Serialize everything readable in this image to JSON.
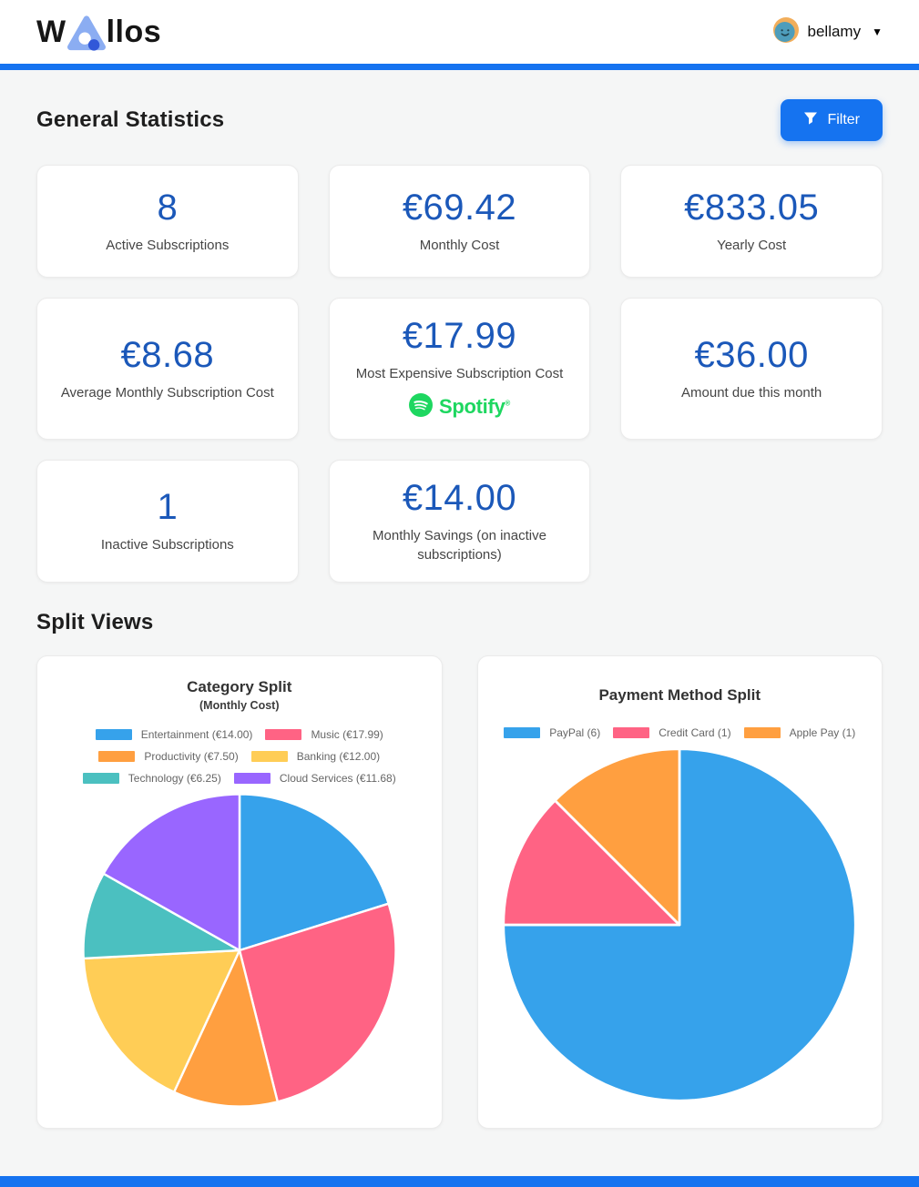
{
  "header": {
    "brand": {
      "text_w": "W",
      "text_rest": "llos"
    },
    "user": {
      "name": "bellamy"
    }
  },
  "icons": {
    "logo_mark": "rounded-triangle-with-dots",
    "avatar": "smiley-monster-face",
    "dropdown": "▼",
    "filter": "funnel",
    "spotify": "spotify-circle"
  },
  "colors": {
    "accent_blue": "#1573f0",
    "stat_number_blue": "#1b58b9",
    "background": "#f5f6f6",
    "spotify_green": "#1ED760",
    "avatar_orange": "#f2ae5b",
    "avatar_face_teal": "#4e9dbb",
    "logo_triangle_blue": "#8badf2",
    "logo_dot_blue": "#3158d8"
  },
  "stats": {
    "title": "General Statistics",
    "filter_label": "Filter",
    "cards": [
      {
        "value": "8",
        "label": "Active Subscriptions"
      },
      {
        "value": "€69.42",
        "label": "Monthly Cost"
      },
      {
        "value": "€833.05",
        "label": "Yearly Cost"
      },
      {
        "value": "€8.68",
        "label": "Average Monthly Subscription Cost"
      },
      {
        "value": "€17.99",
        "label": "Most Expensive Subscription Cost",
        "logo_label": "Spotify"
      },
      {
        "value": "€36.00",
        "label": "Amount due this month"
      },
      {
        "value": "1",
        "label": "Inactive Subscriptions"
      },
      {
        "value": "€14.00",
        "label": "Monthly Savings (on inactive subscriptions)"
      }
    ]
  },
  "split_views": {
    "title": "Split Views"
  },
  "chart_data": [
    {
      "type": "pie",
      "title": "Category Split",
      "subtitle": "(Monthly Cost)",
      "legend_position": "top",
      "start_angle_deg": 0,
      "direction": "clockwise",
      "labels": [
        "Entertainment",
        "Music",
        "Productivity",
        "Banking",
        "Technology",
        "Cloud Services"
      ],
      "values": [
        14.0,
        17.99,
        7.5,
        12.0,
        6.25,
        11.68
      ],
      "total": 69.42,
      "legend_labels": [
        "Entertainment (€14.00)",
        "Music (€17.99)",
        "Productivity (€7.50)",
        "Banking (€12.00)",
        "Technology (€6.25)",
        "Cloud Services (€11.68)"
      ],
      "colors": [
        "#36A2EB",
        "#FF6384",
        "#FF9F40",
        "#FFCD56",
        "#4BC0C0",
        "#9966FF"
      ]
    },
    {
      "type": "pie",
      "title": "Payment Method Split",
      "legend_position": "top",
      "start_angle_deg": 0,
      "direction": "clockwise",
      "labels": [
        "PayPal",
        "Credit Card",
        "Apple Pay"
      ],
      "values": [
        6,
        1,
        1
      ],
      "total": 8,
      "legend_labels": [
        "PayPal (6)",
        "Credit Card (1)",
        "Apple Pay (1)"
      ],
      "colors": [
        "#36A2EB",
        "#FF6384",
        "#FF9F40"
      ]
    }
  ]
}
